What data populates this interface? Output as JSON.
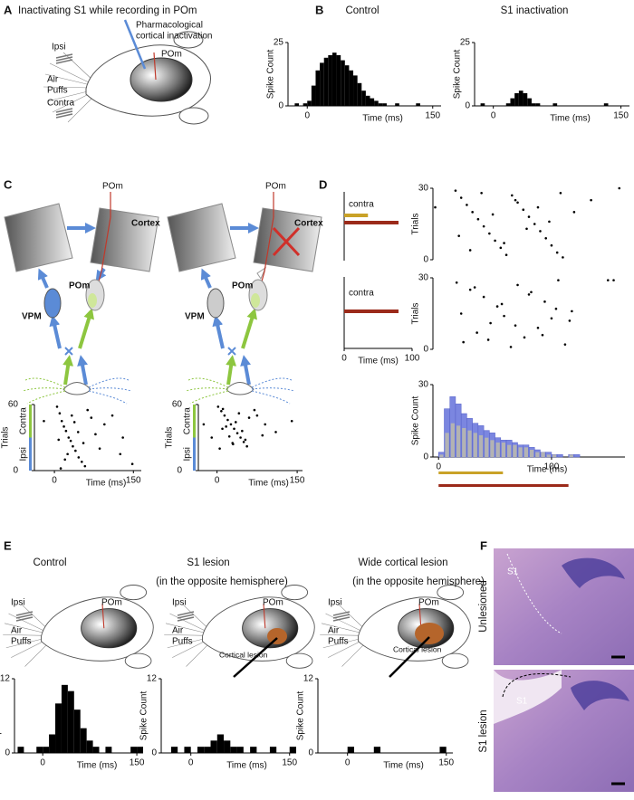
{
  "panel_letters": [
    "A",
    "B",
    "C",
    "D",
    "E",
    "F"
  ],
  "panel_a": {
    "title": "Inactivating S1 while recording in POm",
    "pipette_label": [
      "Pharmacological",
      "cortical inactivation"
    ],
    "pom": "POm",
    "ipsi": "Ipsi",
    "air_puffs": [
      "Air",
      "Puffs"
    ],
    "contra": "Contra"
  },
  "panel_c": {
    "pom_electrode": [
      "POm",
      "POm"
    ],
    "cortex": [
      "Cortex",
      "Cortex"
    ],
    "pom": [
      "POm",
      "POm"
    ],
    "vpm": [
      "VPM",
      "VPM"
    ]
  },
  "panel_e": {
    "ipsi": [
      "Ipsi",
      "Ipsi",
      "Ipsi"
    ],
    "air_puffs": [
      [
        "Air",
        "Puffs"
      ],
      [
        "Air",
        "Puffs"
      ],
      [
        "Air",
        "Puffs"
      ]
    ],
    "pom": [
      "POm",
      "POm",
      "POm"
    ],
    "lesion": [
      "Cortical lesion",
      "Cortical lesion"
    ]
  },
  "panel_f": {
    "images": [
      "Unlesioned",
      "S1 lesion"
    ],
    "region": [
      "S1",
      "S1"
    ]
  },
  "chart_data": [
    {
      "type": "histogram",
      "title": "Control",
      "xlabel": "Time (ms)",
      "ylabel": "Spike Count",
      "bins": [
        -20,
        -15,
        -10,
        -5,
        0,
        5,
        10,
        15,
        20,
        25,
        30,
        35,
        40,
        45,
        50,
        55,
        60,
        65,
        70,
        75,
        80,
        85,
        90,
        95,
        100,
        105,
        110,
        115,
        120,
        125,
        130,
        135,
        140,
        145,
        150,
        155,
        160
      ],
      "series": [
        {
          "color": "#000000",
          "counts": [
            0,
            1,
            0,
            1,
            2,
            8,
            14,
            17,
            19,
            20,
            21,
            20,
            18,
            16,
            14,
            12,
            9,
            6,
            4,
            3,
            2,
            1,
            1,
            0,
            0,
            1,
            0,
            0,
            0,
            0,
            1,
            0,
            0,
            0,
            0,
            0
          ]
        }
      ],
      "xlim": [
        -23,
        160
      ],
      "ylim": [
        0,
        25
      ],
      "xticks": [
        0,
        150
      ],
      "yticks": [
        0,
        25
      ]
    },
    {
      "type": "histogram",
      "title": "S1 inactivation",
      "xlabel": "Time (ms)",
      "ylabel": "Spike Count",
      "bins": [
        -20,
        -15,
        -10,
        -5,
        0,
        5,
        10,
        15,
        20,
        25,
        30,
        35,
        40,
        45,
        50,
        55,
        60,
        65,
        70,
        75,
        80,
        85,
        90,
        95,
        100,
        105,
        110,
        115,
        120,
        125,
        130,
        135,
        140,
        145,
        150,
        155,
        160
      ],
      "series": [
        {
          "color": "#000000",
          "counts": [
            0,
            1,
            0,
            0,
            0,
            0,
            0,
            1,
            3,
            5,
            6,
            5,
            3,
            1,
            1,
            0,
            0,
            0,
            1,
            0,
            0,
            0,
            0,
            0,
            0,
            0,
            0,
            0,
            0,
            0,
            1,
            0,
            0,
            0,
            0,
            0
          ]
        }
      ],
      "xlim": [
        -22,
        160
      ],
      "ylim": [
        0,
        25
      ],
      "xticks": [
        0,
        150
      ],
      "yticks": [
        0,
        25
      ]
    },
    {
      "type": "raster",
      "xlabel": "Time (ms)",
      "ylabel": "Trials",
      "color": "#000000",
      "x": [
        5,
        10,
        14,
        18,
        22,
        27,
        31,
        35,
        40,
        46,
        52,
        58,
        63,
        70,
        78,
        86,
        95,
        110,
        125,
        148,
        8,
        20,
        33,
        45,
        12,
        25,
        38,
        55,
        -20,
        130
      ],
      "y": [
        58,
        52,
        45,
        40,
        36,
        30,
        27,
        22,
        18,
        12,
        8,
        4,
        55,
        48,
        33,
        20,
        42,
        50,
        15,
        6,
        28,
        10,
        50,
        35,
        2,
        15,
        44,
        25,
        45,
        30
      ],
      "groups": [
        {
          "name": "Contra",
          "color": "#8dc63f",
          "range": [
            30,
            60
          ]
        },
        {
          "name": "Ipsi",
          "color": "#5b8bd6",
          "range": [
            0,
            30
          ]
        }
      ],
      "xlim": [
        -38,
        165
      ],
      "ylim": [
        0,
        60
      ],
      "xticks": [
        0,
        150
      ],
      "yticks": [
        0,
        60
      ]
    },
    {
      "type": "raster",
      "xlabel": "Time (ms)",
      "ylabel": "Trials",
      "color": "#000000",
      "x": [
        2,
        8,
        14,
        20,
        26,
        32,
        38,
        44,
        50,
        56,
        5,
        11,
        17,
        23,
        29,
        35,
        41,
        47,
        53,
        60,
        75,
        90,
        110,
        -25,
        -10,
        140,
        70,
        85,
        10,
        30
      ],
      "y": [
        58,
        54,
        50,
        46,
        42,
        38,
        34,
        30,
        26,
        22,
        20,
        56,
        40,
        31,
        25,
        44,
        52,
        36,
        28,
        48,
        50,
        42,
        35,
        42,
        30,
        45,
        55,
        32,
        38,
        24
      ],
      "groups": [
        {
          "name": "Contra",
          "color": "#8dc63f",
          "range": [
            30,
            60
          ]
        },
        {
          "name": "Ipsi",
          "color": "#5b8bd6",
          "range": [
            0,
            30
          ]
        }
      ],
      "xlim": [
        -35,
        160
      ],
      "ylim": [
        0,
        60
      ],
      "xticks": [
        0,
        150
      ],
      "yticks": [
        0,
        60
      ]
    },
    {
      "type": "raster",
      "ylabel": "Trials",
      "color": "#000000",
      "x": [
        15,
        20,
        25,
        30,
        35,
        40,
        45,
        50,
        55,
        60,
        65,
        70,
        75,
        80,
        85,
        90,
        95,
        100,
        105,
        110,
        18,
        28,
        38,
        48,
        58,
        68,
        78,
        88,
        98,
        108,
        120,
        135,
        160,
        -3
      ],
      "y": [
        29,
        26,
        23,
        20,
        17,
        14,
        11,
        8,
        5,
        2,
        27,
        24,
        21,
        18,
        15,
        12,
        9,
        6,
        3,
        1,
        10,
        4,
        28,
        19,
        7,
        25,
        13,
        22,
        16,
        28,
        20,
        25,
        30,
        22
      ],
      "xlim": [
        -5,
        165
      ],
      "ylim": [
        0,
        30
      ],
      "yticks": [
        0,
        30
      ]
    },
    {
      "type": "raster",
      "ylabel": "Trials",
      "color": "#000000",
      "x": [
        16,
        22,
        28,
        34,
        40,
        46,
        52,
        58,
        64,
        70,
        76,
        82,
        88,
        94,
        100,
        106,
        112,
        118,
        20,
        32,
        44,
        56,
        68,
        80,
        92,
        104,
        116,
        150,
        155
      ],
      "y": [
        28,
        3,
        25,
        7,
        22,
        11,
        18,
        14,
        1,
        27,
        5,
        24,
        9,
        20,
        13,
        29,
        2,
        16,
        15,
        26,
        4,
        19,
        10,
        23,
        6,
        17,
        12,
        29,
        29
      ],
      "xlim": [
        -5,
        165
      ],
      "ylim": [
        0,
        30
      ],
      "yticks": [
        0,
        30
      ]
    },
    {
      "type": "histogram",
      "xlabel": "Time (ms)",
      "ylabel": "Spike Count",
      "bins": [
        0,
        5,
        10,
        15,
        20,
        25,
        30,
        35,
        40,
        45,
        50,
        55,
        60,
        65,
        70,
        75,
        80,
        85,
        90,
        95,
        100,
        105,
        110,
        115,
        120,
        125
      ],
      "series": [
        {
          "color": "#7b86e0",
          "counts": [
            2,
            20,
            25,
            22,
            18,
            16,
            14,
            13,
            11,
            10,
            8,
            7,
            7,
            6,
            5,
            5,
            4,
            3,
            2,
            2,
            1,
            1,
            0,
            1,
            1
          ]
        },
        {
          "color": "#b3b3b3",
          "counts": [
            1,
            10,
            14,
            13,
            12,
            11,
            10,
            9,
            8,
            7,
            6,
            6,
            5,
            5,
            4,
            4,
            3,
            2,
            2,
            1,
            1,
            0,
            0,
            1,
            0
          ]
        }
      ],
      "stimulus_bars": [
        {
          "color": "#c9a227",
          "start": 0,
          "end": 57
        },
        {
          "color": "#9b2a1a",
          "start": 0,
          "end": 115
        }
      ],
      "xlim": [
        -5,
        165
      ],
      "ylim": [
        0,
        30
      ],
      "xticks": [
        0,
        100
      ],
      "yticks": [
        0,
        30
      ]
    },
    {
      "type": "histogram",
      "title": "Control",
      "xlabel": "Time (ms)",
      "ylabel": "Spike Count",
      "bins": [
        -40,
        -30,
        -20,
        -10,
        0,
        10,
        20,
        30,
        40,
        50,
        60,
        70,
        80,
        90,
        100,
        110,
        120,
        130,
        140,
        150,
        160
      ],
      "series": [
        {
          "color": "#000000",
          "counts": [
            1,
            0,
            0,
            1,
            1,
            3,
            8,
            11,
            10,
            7,
            4,
            2,
            1,
            0,
            1,
            0,
            0,
            0,
            1,
            1
          ]
        }
      ],
      "xlim": [
        -45,
        160
      ],
      "ylim": [
        0,
        12
      ],
      "xticks": [
        0,
        150
      ],
      "yticks": [
        0,
        12
      ]
    },
    {
      "type": "histogram",
      "title": "S1 lesion",
      "subtitle": "(in the opposite hemisphere)",
      "xlabel": "Time (ms)",
      "ylabel": "Spike Count",
      "bins": [
        -40,
        -30,
        -20,
        -10,
        0,
        10,
        20,
        30,
        40,
        50,
        60,
        70,
        80,
        90,
        100,
        110,
        120,
        130,
        140,
        150,
        160
      ],
      "series": [
        {
          "color": "#000000",
          "counts": [
            0,
            1,
            0,
            1,
            0,
            1,
            1,
            2,
            3,
            2,
            1,
            1,
            0,
            1,
            0,
            0,
            1,
            0,
            0,
            1
          ]
        }
      ],
      "xlim": [
        -45,
        160
      ],
      "ylim": [
        0,
        12
      ],
      "xticks": [
        0,
        150
      ],
      "yticks": [
        0,
        12
      ]
    },
    {
      "type": "histogram",
      "title": "Wide cortical lesion",
      "subtitle": "(in the opposite hemisphere)",
      "xlabel": "Time (ms)",
      "ylabel": "Spike Count",
      "bins": [
        -40,
        -30,
        -20,
        -10,
        0,
        10,
        20,
        30,
        40,
        50,
        60,
        70,
        80,
        90,
        100,
        110,
        120,
        130,
        140,
        150,
        160
      ],
      "series": [
        {
          "color": "#000000",
          "counts": [
            0,
            0,
            0,
            0,
            1,
            0,
            0,
            0,
            1,
            0,
            0,
            0,
            0,
            0,
            0,
            0,
            0,
            0,
            1,
            0
          ]
        }
      ],
      "xlim": [
        -45,
        160
      ],
      "ylim": [
        0,
        12
      ],
      "xticks": [
        0,
        150
      ],
      "yticks": [
        0,
        12
      ]
    },
    {
      "type": "stimulus",
      "label": "contra",
      "bars": [
        {
          "color": "#c9a227",
          "start": 0,
          "end": 35
        },
        {
          "color": "#9b2a1a",
          "start": 0,
          "end": 80
        }
      ],
      "xlim": [
        0,
        100
      ]
    },
    {
      "type": "stimulus",
      "label": "contra",
      "xlabel": "Time (ms)",
      "bars": [
        {
          "color": "#9b2a1a",
          "start": 0,
          "end": 80
        }
      ],
      "xlim": [
        0,
        100
      ],
      "xticks": [
        0,
        100
      ]
    }
  ]
}
